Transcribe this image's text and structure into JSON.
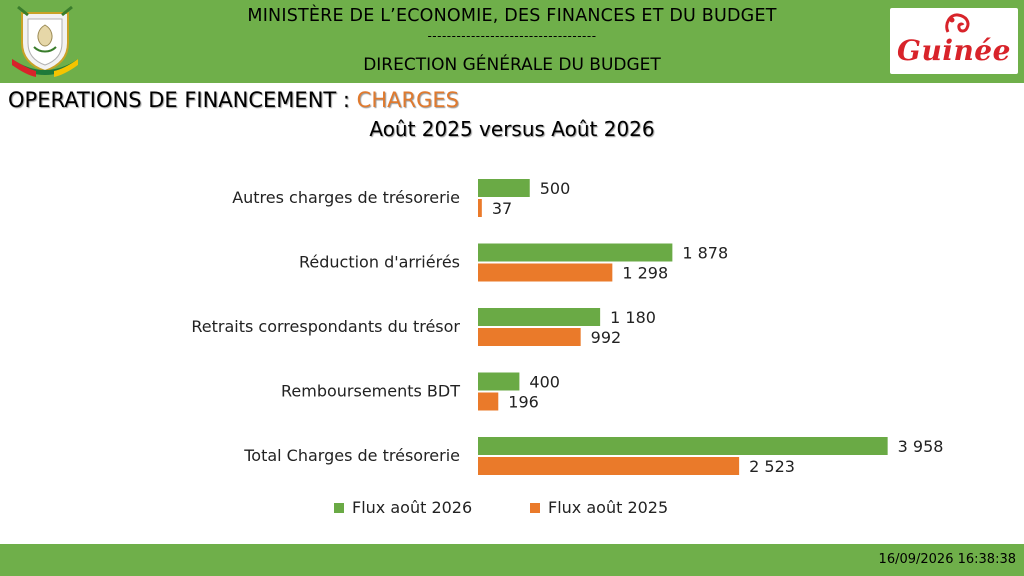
{
  "header": {
    "line1": "MINISTÈRE DE L’ECONOMIE, DES FINANCES ET DU BUDGET",
    "line2": "-----------------------------------",
    "line3": "DIRECTION GÉNÉRALE DU BUDGET",
    "emblem_icon": "guinea-coat-of-arms-icon",
    "logo_text": "Guinée",
    "logo_icon": "guinee-brand-logo-icon"
  },
  "title": {
    "prefix": "OPERATIONS DE FINANCEMENT : ",
    "accent": "CHARGES",
    "accent_color": "#e07a2e"
  },
  "subtitle": "Août 2025 versus Août 2026",
  "chart_data": {
    "type": "bar",
    "orientation": "horizontal",
    "categories": [
      "Autres charges de trésorerie",
      "Réduction d'arriérés",
      "Retraits correspondants du trésor",
      "Remboursements BDT",
      "Total Charges de trésorerie"
    ],
    "series": [
      {
        "name": "Flux août 2026",
        "color": "#6aaa45",
        "values": [
          500,
          1878,
          1180,
          400,
          3958
        ],
        "labels": [
          "500",
          "1 878",
          "1 180",
          "400",
          "3 958"
        ]
      },
      {
        "name": "Flux août 2025",
        "color": "#ea7a2a",
        "values": [
          37,
          1298,
          992,
          196,
          2523
        ],
        "labels": [
          "37",
          "1 298",
          "992",
          "196",
          "2 523"
        ]
      }
    ],
    "xlim": [
      0,
      4000
    ],
    "grid": false,
    "legend_position": "bottom"
  },
  "footer": {
    "timestamp": "16/09/2026 16:38:38"
  }
}
